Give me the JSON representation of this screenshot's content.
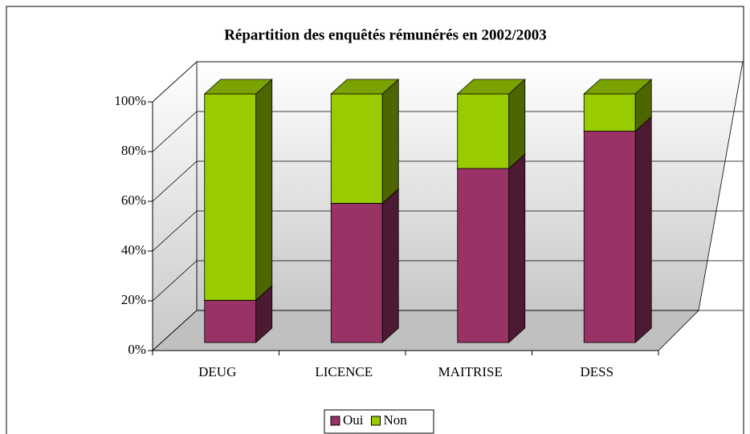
{
  "chart_data": {
    "type": "bar3d_stacked",
    "title": "Répartition des enquêtés rémunérés en 2002/2003",
    "categories": [
      "DEUG",
      "LICENCE",
      "MAITRISE",
      "DESS"
    ],
    "series": [
      {
        "name": "Oui",
        "color": "#993366",
        "values": [
          17,
          56,
          70,
          85
        ]
      },
      {
        "name": "Non",
        "color": "#99cc00",
        "values": [
          83,
          44,
          30,
          15
        ]
      }
    ],
    "ylim": [
      0,
      100
    ],
    "yticks": [
      {
        "value": 0,
        "label": "0%"
      },
      {
        "value": 20,
        "label": "20%"
      },
      {
        "value": 40,
        "label": "40%"
      },
      {
        "value": 60,
        "label": "60%"
      },
      {
        "value": 80,
        "label": "80%"
      },
      {
        "value": 100,
        "label": "100%"
      }
    ],
    "grid": true,
    "legend": "bottom"
  }
}
